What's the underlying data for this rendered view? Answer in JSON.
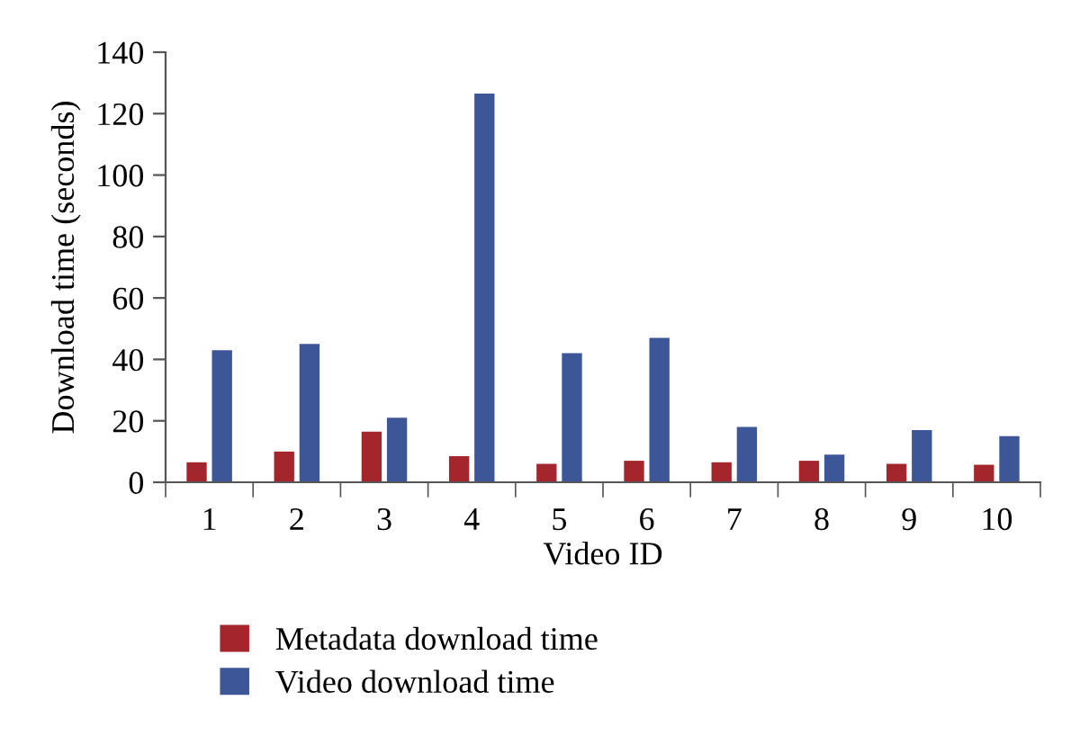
{
  "chart_data": {
    "type": "bar",
    "xlabel": "Video ID",
    "ylabel": "Download time (seconds)",
    "categories": [
      "1",
      "2",
      "3",
      "4",
      "5",
      "6",
      "7",
      "8",
      "9",
      "10"
    ],
    "series": [
      {
        "name": "Metadata download time",
        "color": "#a4262c",
        "values": [
          6.5,
          10,
          16.5,
          8.5,
          6,
          7,
          6.5,
          7,
          6,
          5.7
        ]
      },
      {
        "name": "Video download time",
        "color": "#3d5697",
        "values": [
          43,
          45,
          21,
          126.5,
          42,
          47,
          18,
          9,
          17,
          15
        ]
      }
    ],
    "ylim": [
      0,
      140
    ],
    "yticks": [
      0,
      20,
      40,
      60,
      80,
      100,
      120,
      140
    ],
    "grid": false,
    "legend": "bottom left"
  }
}
